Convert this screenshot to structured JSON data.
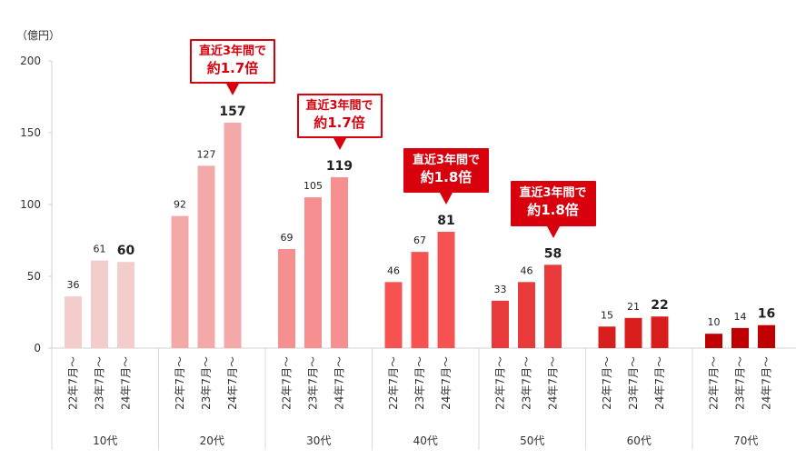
{
  "unit_label": "（億円）",
  "chart_data": {
    "type": "bar",
    "ylim": [
      0,
      200
    ],
    "yticks": [
      "0",
      "50",
      "100",
      "150",
      "200"
    ],
    "ytick_values": [
      0,
      50,
      100,
      150,
      200
    ],
    "grid": false,
    "legend": "none",
    "groups": [
      {
        "label": "10代",
        "color": "#f3cccc",
        "bars": [
          {
            "x": "22年7月～",
            "value": 36,
            "label": "36"
          },
          {
            "x": "23年7月～",
            "value": 61,
            "label": "61"
          },
          {
            "x": "24年7月～",
            "value": 60,
            "label": "60"
          }
        ]
      },
      {
        "label": "20代",
        "color": "#f4a9a9",
        "bars": [
          {
            "x": "22年7月～",
            "value": 92,
            "label": "92"
          },
          {
            "x": "23年7月～",
            "value": 127,
            "label": "127"
          },
          {
            "x": "24年7月～",
            "value": 157,
            "label": "157"
          }
        ]
      },
      {
        "label": "30代",
        "color": "#f68f8f",
        "bars": [
          {
            "x": "22年7月～",
            "value": 69,
            "label": "69"
          },
          {
            "x": "23年7月～",
            "value": 105,
            "label": "105"
          },
          {
            "x": "24年7月～",
            "value": 119,
            "label": "119"
          }
        ]
      },
      {
        "label": "40代",
        "color": "#f65252",
        "bars": [
          {
            "x": "22年7月～",
            "value": 46,
            "label": "46"
          },
          {
            "x": "23年7月～",
            "value": 67,
            "label": "67"
          },
          {
            "x": "24年7月～",
            "value": 81,
            "label": "81"
          }
        ]
      },
      {
        "label": "50代",
        "color": "#e83a3a",
        "bars": [
          {
            "x": "22年7月～",
            "value": 33,
            "label": "33"
          },
          {
            "x": "23年7月～",
            "value": 46,
            "label": "46"
          },
          {
            "x": "24年7月～",
            "value": 58,
            "label": "58"
          }
        ]
      },
      {
        "label": "60代",
        "color": "#d81d1d",
        "bars": [
          {
            "x": "22年7月～",
            "value": 15,
            "label": "15"
          },
          {
            "x": "23年7月～",
            "value": 21,
            "label": "21"
          },
          {
            "x": "24年7月～",
            "value": 22,
            "label": "22"
          }
        ]
      },
      {
        "label": "70代",
        "color": "#c00000",
        "bars": [
          {
            "x": "22年7月～",
            "value": 10,
            "label": "10"
          },
          {
            "x": "23年7月～",
            "value": 14,
            "label": "14"
          },
          {
            "x": "24年7月～",
            "value": 16,
            "label": "16"
          }
        ]
      }
    ],
    "annotations": [
      {
        "group": "20代",
        "line1": "直近3年間で",
        "line2": "約1.7倍",
        "style": "outline"
      },
      {
        "group": "30代",
        "line1": "直近3年間で",
        "line2": "約1.7倍",
        "style": "outline"
      },
      {
        "group": "40代",
        "line1": "直近3年間で",
        "line2": "約1.8倍",
        "style": "filled"
      },
      {
        "group": "50代",
        "line1": "直近3年間で",
        "line2": "約1.8倍",
        "style": "filled"
      }
    ]
  }
}
